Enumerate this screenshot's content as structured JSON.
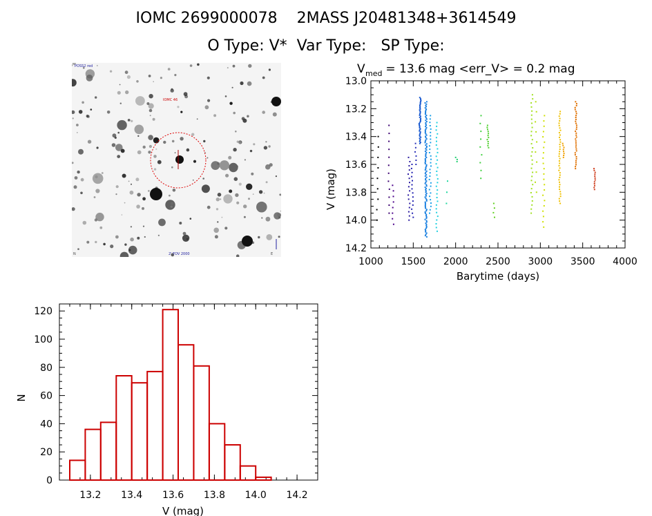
{
  "header": {
    "title_line1": "IOMC 2699000078    2MASS J20481348+3614549",
    "title_line2": "O Type: V*  Var Type:   SP Type:"
  },
  "sky_image": {
    "description_label": "FOV",
    "top_left_label": "POSS2 red",
    "target_label": "IOMC 46",
    "bottom_left_label": "N",
    "bottom_center_label": "2' FOV 2000",
    "bottom_right_label": "E",
    "circle_color": "#dd0000"
  },
  "chart_data": [
    {
      "type": "scatter",
      "title_prefix": "V",
      "title_sub": "med",
      "title": " = 13.6 mag <err_V> = 0.2 mag",
      "xlabel": "Barytime (days)",
      "ylabel": "V (mag)",
      "xlim": [
        1000,
        4000
      ],
      "ylim": [
        14.2,
        13.0
      ],
      "xticks": [
        1000,
        1500,
        2000,
        2500,
        3000,
        3500,
        4000
      ],
      "yticks": [
        13.0,
        13.2,
        13.4,
        13.6,
        13.8,
        14.0,
        14.2
      ],
      "groups": [
        {
          "x": 1080,
          "ymin": 13.4,
          "ymax": 14.0,
          "n": 9,
          "color": "#000000"
        },
        {
          "x": 1210,
          "ymin": 13.32,
          "ymax": 13.95,
          "n": 12,
          "color": "#3b0070"
        },
        {
          "x": 1260,
          "ymin": 13.75,
          "ymax": 14.03,
          "n": 8,
          "color": "#4a008a"
        },
        {
          "x": 1450,
          "ymin": 13.55,
          "ymax": 14.0,
          "n": 16,
          "color": "#2a1aa0"
        },
        {
          "x": 1490,
          "ymin": 13.6,
          "ymax": 13.98,
          "n": 14,
          "color": "#2020b0"
        },
        {
          "x": 1530,
          "ymin": 13.45,
          "ymax": 13.6,
          "n": 6,
          "color": "#2a30b8"
        },
        {
          "x": 1580,
          "ymin": 13.12,
          "ymax": 13.45,
          "n": 45,
          "color": "#1a5ad0"
        },
        {
          "x": 1650,
          "ymin": 13.15,
          "ymax": 14.12,
          "n": 110,
          "color": "#1a80e0"
        },
        {
          "x": 1700,
          "ymin": 13.25,
          "ymax": 13.95,
          "n": 30,
          "color": "#1aa0e8"
        },
        {
          "x": 1780,
          "ymin": 13.3,
          "ymax": 14.08,
          "n": 30,
          "color": "#20d0e0"
        },
        {
          "x": 1900,
          "ymin": 13.72,
          "ymax": 13.88,
          "n": 3,
          "color": "#20d8a0"
        },
        {
          "x": 2010,
          "ymin": 13.55,
          "ymax": 13.58,
          "n": 3,
          "color": "#20d070"
        },
        {
          "x": 2300,
          "ymin": 13.25,
          "ymax": 13.7,
          "n": 9,
          "color": "#40d040"
        },
        {
          "x": 2380,
          "ymin": 13.32,
          "ymax": 13.48,
          "n": 12,
          "color": "#50d030"
        },
        {
          "x": 2450,
          "ymin": 13.88,
          "ymax": 13.98,
          "n": 4,
          "color": "#60d020"
        },
        {
          "x": 2900,
          "ymin": 13.1,
          "ymax": 13.95,
          "n": 30,
          "color": "#a0e020"
        },
        {
          "x": 2950,
          "ymin": 13.15,
          "ymax": 13.8,
          "n": 10,
          "color": "#b8e010"
        },
        {
          "x": 3040,
          "ymin": 13.25,
          "ymax": 14.05,
          "n": 22,
          "color": "#d0e000"
        },
        {
          "x": 3230,
          "ymin": 13.22,
          "ymax": 13.88,
          "n": 40,
          "color": "#f0c000"
        },
        {
          "x": 3270,
          "ymin": 13.45,
          "ymax": 13.55,
          "n": 8,
          "color": "#f0a000"
        },
        {
          "x": 3420,
          "ymin": 13.15,
          "ymax": 13.63,
          "n": 35,
          "color": "#e07000"
        },
        {
          "x": 3640,
          "ymin": 13.63,
          "ymax": 13.78,
          "n": 12,
          "color": "#d04020"
        }
      ]
    },
    {
      "type": "bar",
      "xlabel": "V (mag)",
      "ylabel": "N",
      "xlim": [
        13.05,
        14.3
      ],
      "ylim": [
        0,
        125
      ],
      "xticks": [
        13.2,
        13.4,
        13.6,
        13.8,
        14.0,
        14.2
      ],
      "yticks": [
        0,
        20,
        40,
        60,
        80,
        100,
        120
      ],
      "bin_width": 0.075,
      "bin_start": 13.1,
      "values": [
        14,
        36,
        41,
        74,
        69,
        77,
        121,
        96,
        81,
        40,
        25,
        10,
        2
      ],
      "bar_color": "#cc0000"
    }
  ]
}
